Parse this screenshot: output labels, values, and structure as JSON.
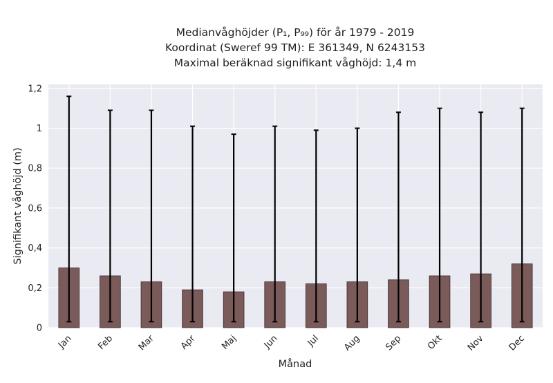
{
  "chart_data": {
    "type": "bar",
    "title_lines": [
      "Medianvåghöjder (P₁, P₉₉) för år 1979 - 2019",
      "Koordinat (Sweref 99 TM): E 361349, N 6243153",
      "Maximal beräknad signifikant våghöjd: 1,4 m"
    ],
    "xlabel": "Månad",
    "ylabel": "Signifikant våghöjd (m)",
    "categories": [
      "Jan",
      "Feb",
      "Mar",
      "Apr",
      "Maj",
      "Jun",
      "Jul",
      "Aug",
      "Sep",
      "Okt",
      "Nov",
      "Dec"
    ],
    "series": [
      {
        "values": [
          0.3,
          0.26,
          0.23,
          0.19,
          0.18,
          0.23,
          0.22,
          0.23,
          0.24,
          0.26,
          0.27,
          0.32
        ],
        "lower": [
          0.03,
          0.03,
          0.03,
          0.03,
          0.03,
          0.03,
          0.03,
          0.03,
          0.03,
          0.03,
          0.03,
          0.03
        ],
        "upper": [
          1.16,
          1.09,
          1.09,
          1.01,
          0.97,
          1.01,
          0.99,
          1.0,
          1.08,
          1.1,
          1.08,
          1.1
        ]
      }
    ],
    "ylim": [
      0,
      1.22
    ],
    "yticks": [
      0,
      0.2,
      0.4,
      0.6,
      0.8,
      1,
      1.2
    ],
    "ytick_labels": [
      "0",
      "0,2",
      "0,4",
      "0,6",
      "0,8",
      "1",
      "1,2"
    ],
    "grid": true,
    "colors": {
      "bar": "#7b5a5a",
      "bar_edge": "#3a2a2a",
      "error": "#000000",
      "plot_background": "#eaeaf2",
      "grid": "#ffffff"
    }
  }
}
